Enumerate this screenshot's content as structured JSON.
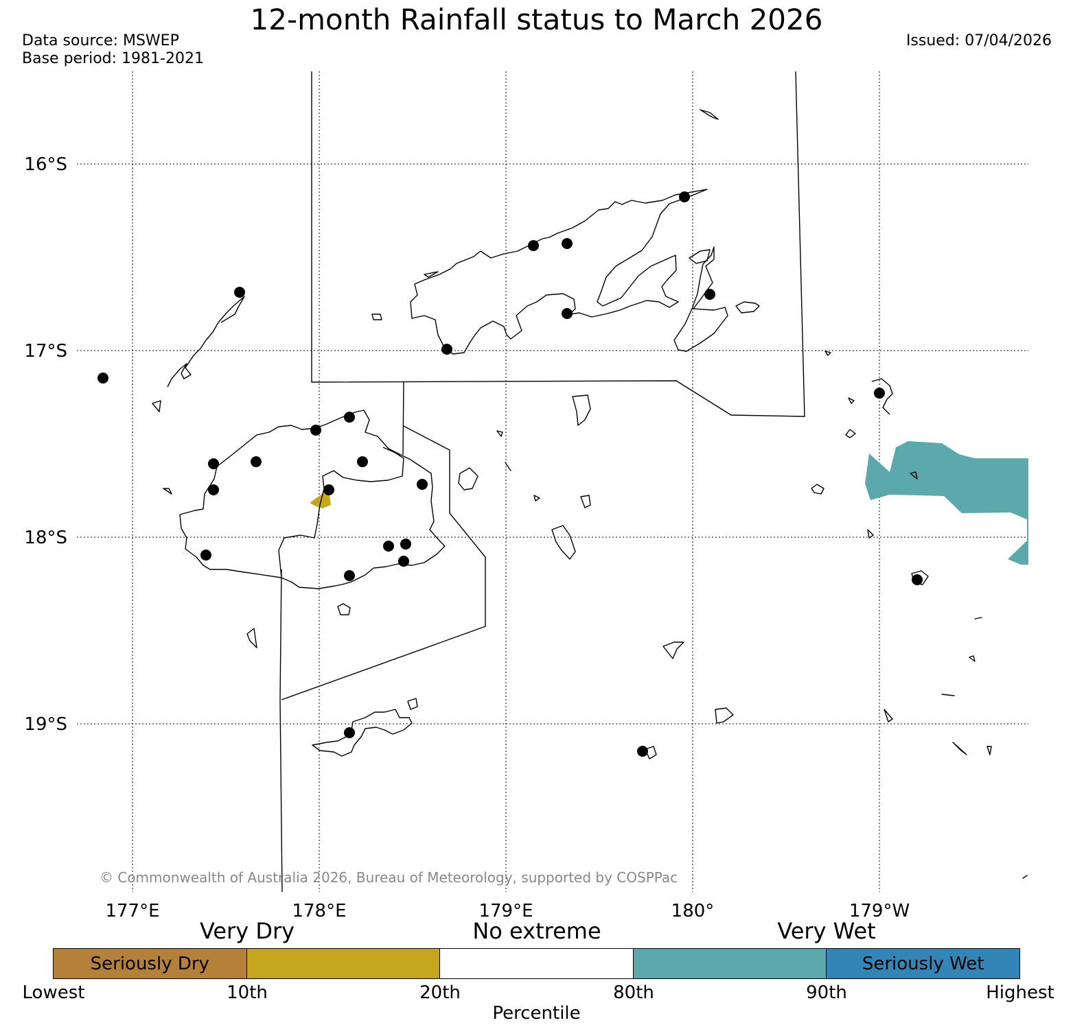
{
  "header": {
    "title": "12-month Rainfall status to March 2026",
    "data_source": "Data source: MSWEP",
    "base_period": "Base period: 1981-2021",
    "issued": "Issued: 07/04/2026"
  },
  "map": {
    "lat_labels": [
      "16°S",
      "17°S",
      "18°S",
      "19°S"
    ],
    "lon_labels": [
      "177°E",
      "178°E",
      "179°E",
      "180°",
      "179°W"
    ],
    "copyright": "© Commonwealth of Australia 2026, Bureau of Meteorology, supported by COSPPac",
    "colors": {
      "seriously_dry": "#b5803a",
      "very_dry": "#c6a51f",
      "no_extreme": "#ffffff",
      "very_wet": "#5ba8ad",
      "seriously_wet": "#3485b7",
      "station": "#000000",
      "coast": "#000000"
    }
  },
  "legend": {
    "headings": [
      "Very Dry",
      "No extreme",
      "Very Wet"
    ],
    "segments": [
      {
        "label": "Seriously Dry",
        "color": "#b5803a"
      },
      {
        "label": "",
        "color": "#c6a51f"
      },
      {
        "label": "",
        "color": "#ffffff"
      },
      {
        "label": "",
        "color": "#5ba8ad"
      },
      {
        "label": "Seriously Wet",
        "color": "#3485b7"
      }
    ],
    "ticks": [
      "Lowest",
      "10th",
      "20th",
      "80th",
      "90th",
      "Highest"
    ],
    "axis_title": "Percentile"
  }
}
